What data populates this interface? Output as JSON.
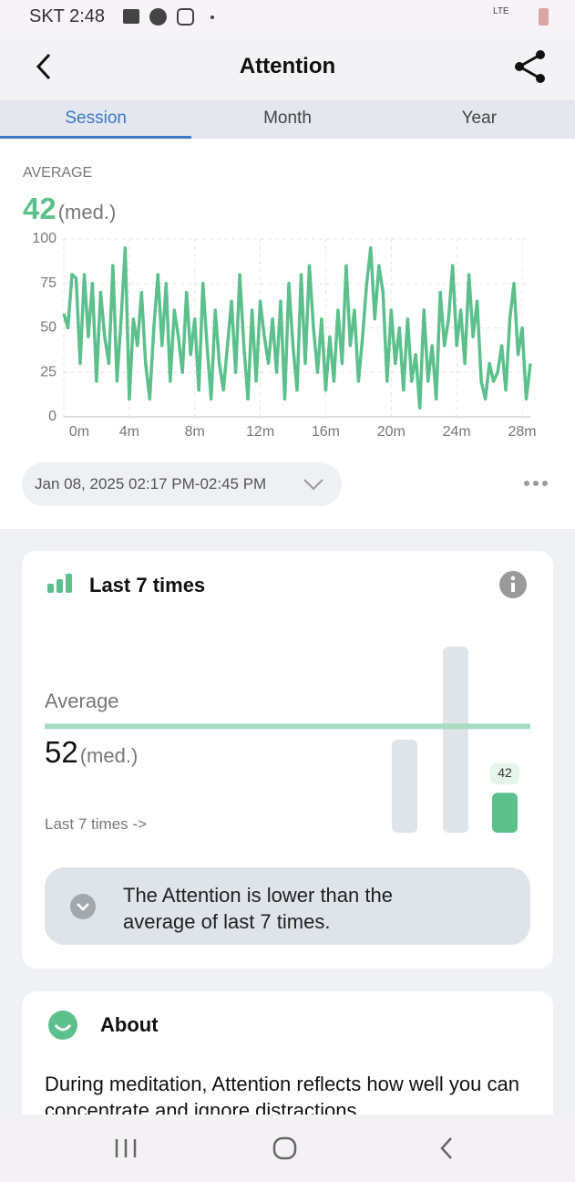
{
  "status_bar": {
    "carrier_time": "SKT 2:48",
    "network": "LTE"
  },
  "header": {
    "title": "Attention"
  },
  "tabs": {
    "items": [
      "Session",
      "Month",
      "Year"
    ],
    "selected": 0
  },
  "summary": {
    "label": "AVERAGE",
    "value": 42,
    "unit": "(med.)"
  },
  "session": {
    "range": "Jan 08, 2025 02:17 PM-02:45 PM"
  },
  "chart_data": [
    {
      "type": "line",
      "color": "#5cc08c",
      "grid": true,
      "x": [
        0,
        0.25,
        0.5,
        0.75,
        1,
        1.25,
        1.5,
        1.75,
        2,
        2.25,
        2.5,
        2.75,
        3,
        3.25,
        3.5,
        3.75,
        4,
        4.25,
        4.5,
        4.75,
        5,
        5.25,
        5.5,
        5.75,
        6,
        6.25,
        6.5,
        6.75,
        7,
        7.25,
        7.5,
        7.75,
        8,
        8.25,
        8.5,
        8.75,
        9,
        9.25,
        9.5,
        9.75,
        10,
        10.25,
        10.5,
        10.75,
        11,
        11.25,
        11.5,
        11.75,
        12,
        12.25,
        12.5,
        12.75,
        13,
        13.25,
        13.5,
        13.75,
        14,
        14.25,
        14.5,
        14.75,
        15,
        15.25,
        15.5,
        15.75,
        16,
        16.25,
        16.5,
        16.75,
        17,
        17.25,
        17.5,
        17.75,
        18,
        18.25,
        18.5,
        18.75,
        19,
        19.25,
        19.5,
        19.75,
        20,
        20.25,
        20.5,
        20.75,
        21,
        21.25,
        21.5,
        21.75,
        22,
        22.25,
        22.5,
        22.75,
        23,
        23.25,
        23.5,
        23.75,
        24,
        24.25,
        24.5,
        24.75,
        25,
        25.25,
        25.5,
        25.75,
        26,
        26.25,
        26.5,
        26.75,
        27,
        27.25,
        27.5,
        27.75,
        28,
        28.25,
        28.5
      ],
      "values": [
        58,
        50,
        80,
        78,
        30,
        80,
        45,
        75,
        20,
        70,
        45,
        30,
        85,
        20,
        55,
        95,
        10,
        55,
        40,
        70,
        30,
        10,
        50,
        80,
        40,
        75,
        20,
        60,
        45,
        25,
        70,
        35,
        55,
        15,
        75,
        40,
        10,
        60,
        30,
        15,
        40,
        65,
        25,
        80,
        40,
        10,
        60,
        20,
        65,
        45,
        30,
        55,
        25,
        65,
        10,
        75,
        40,
        15,
        80,
        30,
        85,
        50,
        25,
        55,
        15,
        45,
        20,
        60,
        30,
        85,
        40,
        60,
        20,
        45,
        75,
        95,
        55,
        85,
        70,
        20,
        60,
        30,
        50,
        15,
        55,
        20,
        35,
        5,
        60,
        20,
        40,
        10,
        70,
        40,
        55,
        85,
        40,
        60,
        30,
        80,
        45,
        65,
        20,
        10,
        30,
        20,
        25,
        40,
        15,
        55,
        75,
        35,
        50,
        10,
        30
      ],
      "xlim": [
        0,
        28.5
      ],
      "xticks": [
        {
          "value": 0,
          "label": "0m"
        },
        {
          "value": 4,
          "label": "4m"
        },
        {
          "value": 8,
          "label": "8m"
        },
        {
          "value": 12,
          "label": "12m"
        },
        {
          "value": 16,
          "label": "16m"
        },
        {
          "value": 20,
          "label": "20m"
        },
        {
          "value": 24,
          "label": "24m"
        },
        {
          "value": 28,
          "label": "28m"
        }
      ],
      "ylim": [
        0,
        100
      ],
      "yticks": [
        0,
        25,
        50,
        75,
        100
      ]
    },
    {
      "type": "bar",
      "title": "Last 7 times",
      "average_label": "Average",
      "average": 52,
      "unit": "(med.)",
      "link": "Last 7 times ->",
      "values": [
        50,
        64,
        42
      ],
      "colors": [
        "#dfe3ea",
        "#dfe3ea",
        "#5cc08c"
      ],
      "ylim": [
        36,
        64
      ],
      "message": "The Attention is lower than the average of last 7 times."
    }
  ],
  "about": {
    "title": "About",
    "text": "During meditation, Attention reflects how well you can concentrate and ignore distractions."
  }
}
